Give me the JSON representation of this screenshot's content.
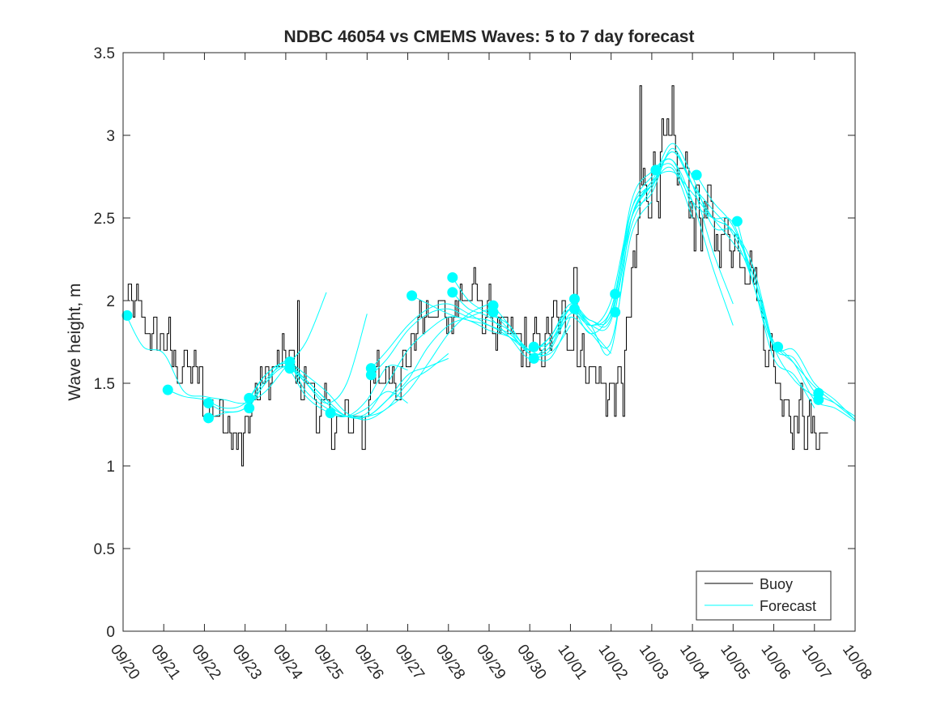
{
  "chart_data": {
    "type": "line",
    "title": "NDBC 46054 vs CMEMS Waves: 5 to 7 day forecast",
    "xlabel": "",
    "ylabel": "Wave height, m",
    "ylim": [
      0,
      3.5
    ],
    "xlim": [
      0,
      18
    ],
    "yticks": [
      0,
      0.5,
      1,
      1.5,
      2,
      2.5,
      3,
      3.5
    ],
    "ytick_labels": [
      "0",
      "0.5",
      "1",
      "1.5",
      "2",
      "2.5",
      "3",
      "3.5"
    ],
    "xticks": [
      0,
      1,
      2,
      3,
      4,
      5,
      6,
      7,
      8,
      9,
      10,
      11,
      12,
      13,
      14,
      15,
      16,
      17,
      18
    ],
    "xtick_labels": [
      "09/20",
      "09/21",
      "09/22",
      "09/23",
      "09/24",
      "09/25",
      "09/26",
      "09/27",
      "09/28",
      "09/29",
      "09/30",
      "10/01",
      "10/02",
      "10/03",
      "10/04",
      "10/05",
      "10/06",
      "10/07",
      "10/08"
    ],
    "grid": false,
    "legend": {
      "position": "bottom-right",
      "entries": [
        "Buoy",
        "Forecast"
      ]
    },
    "colors": {
      "buoy": "#000000",
      "forecast": "#00ffff",
      "axis": "#262626"
    },
    "buoy_series": {
      "name": "Buoy",
      "anchors_x": [
        0,
        0.3,
        0.5,
        0.8,
        1.0,
        1.2,
        1.5,
        1.8,
        2.0,
        2.3,
        2.6,
        2.8,
        2.95,
        3.1,
        3.4,
        3.7,
        4.0,
        4.3,
        4.6,
        4.9,
        5.2,
        5.5,
        5.9,
        6.2,
        6.5,
        6.8,
        7.0,
        7.3,
        7.6,
        8.0,
        8.3,
        8.6,
        9.0,
        9.3,
        9.6,
        10.0,
        10.3,
        10.6,
        11.0,
        11.3,
        11.6,
        11.9,
        12.2,
        12.5,
        12.8,
        13.1,
        13.4,
        13.7,
        14.0,
        14.3,
        14.6,
        14.9,
        15.2,
        15.5,
        15.8,
        16.1,
        16.4,
        16.7,
        17.0,
        17.3
      ],
      "anchors_y": [
        2.0,
        1.95,
        1.85,
        1.75,
        1.75,
        1.65,
        1.6,
        1.55,
        1.35,
        1.35,
        1.3,
        1.2,
        1.1,
        1.35,
        1.5,
        1.55,
        1.65,
        1.55,
        1.45,
        1.3,
        1.25,
        1.25,
        1.35,
        1.5,
        1.6,
        1.6,
        1.65,
        1.9,
        1.9,
        1.95,
        2.0,
        2.0,
        1.9,
        1.8,
        1.75,
        1.7,
        1.75,
        1.85,
        1.85,
        1.65,
        1.55,
        1.45,
        1.45,
        2.0,
        2.7,
        2.85,
        2.8,
        2.75,
        2.65,
        2.45,
        2.4,
        2.4,
        2.35,
        2.2,
        1.75,
        1.55,
        1.35,
        1.3,
        1.2,
        1.2
      ],
      "noise_amplitude": 0.22,
      "x_end": 17.35,
      "dips": [
        [
          2.9,
          1.0
        ],
        [
          5.9,
          1.1
        ],
        [
          12.3,
          1.3
        ]
      ],
      "peaks": [
        [
          12.7,
          3.3
        ],
        [
          13.5,
          3.3
        ],
        [
          4.3,
          2.0
        ],
        [
          11.1,
          2.2
        ]
      ]
    },
    "forecast_series": [
      {
        "name": "Forecast",
        "x": [
          0.1,
          0.5,
          1.0,
          1.5,
          2.0,
          2.5,
          3.0,
          3.5,
          4.0,
          4.5,
          5.0
        ],
        "y": [
          1.9,
          1.72,
          1.68,
          1.45,
          1.42,
          1.4,
          1.38,
          1.45,
          1.6,
          1.75,
          2.05
        ]
      },
      {
        "name": "Forecast",
        "x": [
          1.1,
          1.5,
          2.0,
          2.5,
          3.0,
          3.5,
          4.0,
          4.5,
          5.0,
          5.5,
          6.0
        ],
        "y": [
          1.46,
          1.42,
          1.4,
          1.35,
          1.38,
          1.55,
          1.62,
          1.5,
          1.38,
          1.5,
          1.92
        ]
      },
      {
        "name": "Forecast",
        "x": [
          2.1,
          2.5,
          3.0,
          3.5,
          4.0,
          4.5,
          5.0,
          5.5,
          6.0,
          6.5,
          7.0
        ],
        "y": [
          1.38,
          1.33,
          1.35,
          1.5,
          1.63,
          1.45,
          1.35,
          1.3,
          1.35,
          1.45,
          1.38
        ]
      },
      {
        "name": "Forecast",
        "x": [
          2.1,
          2.5,
          3.0,
          3.5,
          4.0,
          4.5,
          5.0,
          5.5,
          6.0,
          6.5,
          7.0
        ],
        "y": [
          1.29,
          1.32,
          1.35,
          1.52,
          1.6,
          1.42,
          1.33,
          1.3,
          1.4,
          1.6,
          1.58
        ]
      },
      {
        "name": "Forecast",
        "x": [
          3.1,
          3.5,
          4.0,
          4.5,
          5.0,
          5.5,
          6.0,
          6.5,
          7.0,
          7.5,
          8.0
        ],
        "y": [
          1.41,
          1.55,
          1.62,
          1.52,
          1.4,
          1.3,
          1.3,
          1.35,
          1.5,
          1.58,
          1.68
        ]
      },
      {
        "name": "Forecast",
        "x": [
          3.1,
          3.5,
          4.0,
          4.5,
          5.0,
          5.5,
          6.0,
          6.5,
          7.0,
          7.5,
          8.0
        ],
        "y": [
          1.35,
          1.5,
          1.6,
          1.5,
          1.38,
          1.3,
          1.3,
          1.4,
          1.55,
          1.6,
          1.65
        ]
      },
      {
        "name": "Forecast",
        "x": [
          4.1,
          4.5,
          5.0,
          5.5,
          6.0,
          6.5,
          7.0,
          7.5,
          8.0,
          8.5,
          9.0
        ],
        "y": [
          1.63,
          1.55,
          1.45,
          1.32,
          1.28,
          1.35,
          1.45,
          1.62,
          1.8,
          1.92,
          1.98
        ]
      },
      {
        "name": "Forecast",
        "x": [
          4.1,
          4.5,
          5.0,
          5.5,
          6.0,
          6.5,
          7.0,
          7.5,
          8.0,
          8.5,
          9.0
        ],
        "y": [
          1.59,
          1.52,
          1.4,
          1.3,
          1.3,
          1.4,
          1.52,
          1.72,
          1.85,
          1.9,
          1.95
        ]
      },
      {
        "name": "Forecast",
        "x": [
          5.1,
          5.5,
          6.0,
          6.5,
          7.0,
          7.5,
          8.0,
          8.5,
          9.0,
          9.5,
          10.0
        ],
        "y": [
          1.32,
          1.3,
          1.32,
          1.5,
          1.7,
          1.82,
          1.9,
          1.88,
          1.82,
          1.78,
          1.7
        ]
      },
      {
        "name": "Forecast",
        "x": [
          6.1,
          6.5,
          7.0,
          7.5,
          8.0,
          8.5,
          9.0,
          9.5,
          10.0,
          10.5,
          11.0
        ],
        "y": [
          1.59,
          1.7,
          1.85,
          1.95,
          1.98,
          1.92,
          1.85,
          1.8,
          1.68,
          1.65,
          1.9
        ]
      },
      {
        "name": "Forecast",
        "x": [
          6.1,
          6.5,
          7.0,
          7.5,
          8.0,
          8.5,
          9.0,
          9.5,
          10.0,
          10.5,
          11.0
        ],
        "y": [
          1.55,
          1.65,
          1.82,
          1.92,
          1.95,
          1.9,
          1.88,
          1.82,
          1.7,
          1.68,
          1.85
        ]
      },
      {
        "name": "Forecast",
        "x": [
          7.1,
          7.5,
          8.0,
          8.5,
          9.0,
          9.5,
          10.0,
          10.5,
          11.0,
          11.5,
          12.0
        ],
        "y": [
          2.03,
          1.98,
          1.92,
          1.88,
          1.85,
          1.78,
          1.7,
          1.78,
          1.95,
          1.82,
          1.68
        ]
      },
      {
        "name": "Forecast",
        "x": [
          8.1,
          8.5,
          9.0,
          9.5,
          10.0,
          10.5,
          11.0,
          11.5,
          12.0,
          12.5,
          13.0
        ],
        "y": [
          2.14,
          2.0,
          1.92,
          1.85,
          1.68,
          1.72,
          1.95,
          1.85,
          1.7,
          2.5,
          2.7
        ]
      },
      {
        "name": "Forecast",
        "x": [
          8.1,
          8.5,
          9.0,
          9.5,
          10.0,
          10.5,
          11.0,
          11.5,
          12.0,
          12.5,
          13.0
        ],
        "y": [
          2.05,
          1.95,
          1.9,
          1.78,
          1.65,
          1.75,
          1.9,
          1.8,
          1.75,
          2.4,
          2.6
        ]
      },
      {
        "name": "Forecast",
        "x": [
          9.1,
          9.5,
          10.0,
          10.5,
          11.0,
          11.5,
          12.0,
          12.5,
          13.0,
          13.5,
          14.0
        ],
        "y": [
          1.97,
          1.85,
          1.7,
          1.78,
          1.98,
          1.88,
          1.92,
          2.55,
          2.75,
          2.85,
          2.55
        ]
      },
      {
        "name": "Forecast",
        "x": [
          9.1,
          9.5,
          10.0,
          10.5,
          11.0,
          11.5,
          12.0,
          12.5,
          13.0,
          13.5,
          14.0
        ],
        "y": [
          1.93,
          1.82,
          1.68,
          1.72,
          1.95,
          1.85,
          1.88,
          2.5,
          2.7,
          2.8,
          2.5
        ]
      },
      {
        "name": "Forecast",
        "x": [
          10.1,
          10.5,
          11.0,
          11.5,
          12.0,
          12.5,
          13.0,
          13.5,
          14.0,
          14.5,
          15.0
        ],
        "y": [
          1.72,
          1.75,
          1.95,
          1.88,
          1.9,
          2.6,
          2.78,
          2.85,
          2.6,
          2.2,
          1.85
        ]
      },
      {
        "name": "Forecast",
        "x": [
          10.1,
          10.5,
          11.0,
          11.5,
          12.0,
          12.5,
          13.0,
          13.5,
          14.0,
          14.5,
          15.0
        ],
        "y": [
          1.65,
          1.7,
          1.92,
          1.85,
          1.95,
          2.5,
          2.7,
          2.9,
          2.7,
          2.3,
          1.98
        ]
      },
      {
        "name": "Forecast",
        "x": [
          11.1,
          11.5,
          12.0,
          12.5,
          13.0,
          13.5,
          14.0,
          14.5,
          15.0,
          15.5,
          16.0
        ],
        "y": [
          2.01,
          1.85,
          2.0,
          2.55,
          2.72,
          2.95,
          2.75,
          2.45,
          2.42,
          2.2,
          1.7
        ]
      },
      {
        "name": "Forecast",
        "x": [
          11.1,
          11.5,
          12.0,
          12.5,
          13.0,
          13.5,
          14.0,
          14.5,
          15.0,
          15.5,
          16.0
        ],
        "y": [
          1.95,
          1.8,
          1.95,
          2.5,
          2.65,
          2.92,
          2.7,
          2.5,
          2.35,
          2.15,
          1.72
        ]
      },
      {
        "name": "Forecast",
        "x": [
          12.1,
          12.5,
          13.0,
          13.5,
          14.0,
          14.5,
          15.0,
          15.5,
          16.0,
          16.5,
          17.0
        ],
        "y": [
          2.04,
          2.5,
          2.72,
          2.78,
          2.65,
          2.5,
          2.42,
          2.15,
          1.72,
          1.52,
          1.42
        ]
      },
      {
        "name": "Forecast",
        "x": [
          12.1,
          12.5,
          13.0,
          13.5,
          14.0,
          14.5,
          15.0,
          15.5,
          16.0,
          16.5,
          17.0
        ],
        "y": [
          1.93,
          2.45,
          2.68,
          2.9,
          2.7,
          2.55,
          2.4,
          2.1,
          1.65,
          1.55,
          1.35
        ]
      },
      {
        "name": "Forecast",
        "x": [
          13.1,
          13.5,
          14.0,
          14.5,
          15.0,
          15.5,
          16.0,
          16.5,
          17.0,
          17.5,
          18.0
        ],
        "y": [
          2.79,
          2.82,
          2.6,
          2.5,
          2.47,
          2.1,
          1.75,
          1.62,
          1.48,
          1.38,
          1.28
        ]
      },
      {
        "name": "Forecast",
        "x": [
          14.1,
          14.5,
          15.0,
          15.5,
          16.0,
          16.5,
          17.0,
          17.5,
          18.0
        ],
        "y": [
          2.76,
          2.6,
          2.45,
          2.15,
          1.72,
          1.65,
          1.45,
          1.38,
          1.3
        ]
      },
      {
        "name": "Forecast",
        "x": [
          15.1,
          15.5,
          16.0,
          16.5,
          17.0,
          17.5,
          18.0
        ],
        "y": [
          2.48,
          2.1,
          1.72,
          1.7,
          1.5,
          1.4,
          1.28
        ]
      },
      {
        "name": "Forecast",
        "x": [
          16.1,
          16.5,
          17.0,
          17.5,
          18.0
        ],
        "y": [
          1.72,
          1.62,
          1.4,
          1.35,
          1.27
        ]
      }
    ],
    "forecast_markers": {
      "x": [
        0.1,
        1.1,
        2.1,
        2.1,
        3.1,
        3.1,
        4.1,
        4.1,
        5.1,
        6.1,
        6.1,
        7.1,
        8.1,
        8.1,
        9.1,
        9.1,
        10.1,
        10.1,
        11.1,
        11.1,
        12.1,
        12.1,
        13.1,
        14.1,
        15.1,
        16.1,
        17.1,
        17.1
      ],
      "y": [
        1.91,
        1.46,
        1.38,
        1.29,
        1.41,
        1.35,
        1.63,
        1.59,
        1.32,
        1.59,
        1.55,
        2.03,
        2.14,
        2.05,
        1.97,
        1.93,
        1.72,
        1.65,
        2.01,
        1.95,
        2.04,
        1.93,
        2.79,
        2.76,
        2.48,
        1.72,
        1.44,
        1.4
      ]
    }
  }
}
